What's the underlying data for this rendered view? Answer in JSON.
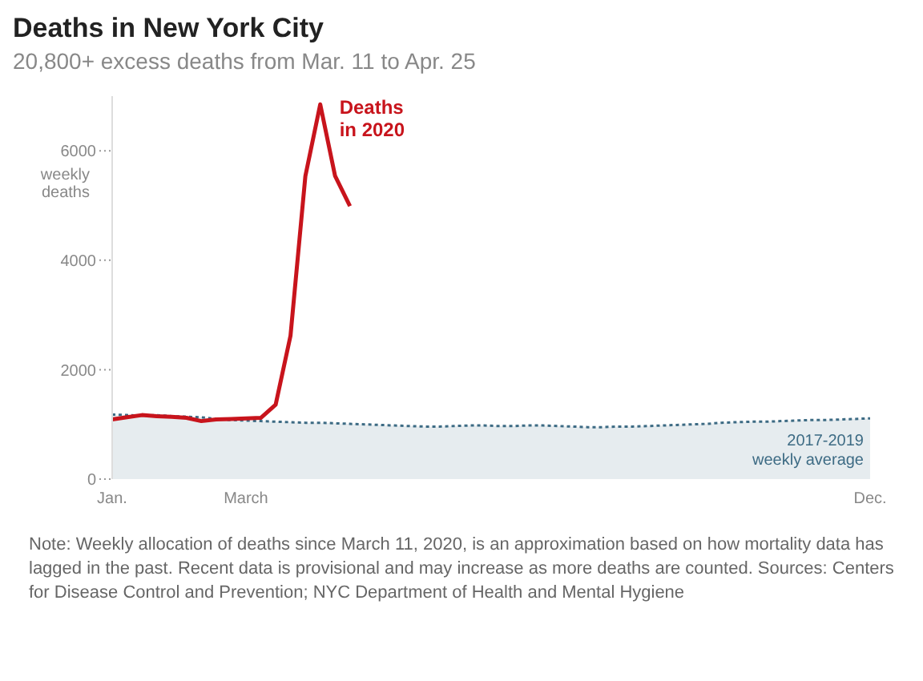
{
  "chart_data": {
    "type": "line",
    "title": "Deaths in New York City",
    "subtitle": "20,800+ excess deaths from Mar. 11 to Apr. 25",
    "ylabel": "weekly deaths",
    "categories": [
      "Jan.",
      null,
      null,
      null,
      null,
      null,
      null,
      null,
      null,
      "March",
      null,
      null,
      null,
      null,
      null,
      null,
      null,
      null,
      null,
      null,
      null,
      null,
      null,
      null,
      null,
      null,
      null,
      null,
      null,
      null,
      null,
      null,
      null,
      null,
      null,
      null,
      null,
      null,
      null,
      null,
      null,
      null,
      null,
      null,
      null,
      null,
      null,
      null,
      null,
      null,
      null,
      "Dec."
    ],
    "ylim": [
      0,
      7000
    ],
    "yticks": [
      0,
      2000,
      4000,
      6000
    ],
    "grid": false,
    "legend": false,
    "marker": "none",
    "series": [
      {
        "name": "2017-2019 weekly average",
        "type": "area",
        "color": "#3d6b84",
        "line_style": "dotted",
        "values": [
          1180,
          1170,
          1160,
          1170,
          1150,
          1140,
          1130,
          1100,
          1080,
          1070,
          1060,
          1050,
          1040,
          1030,
          1030,
          1020,
          1010,
          1000,
          990,
          980,
          970,
          960,
          960,
          970,
          980,
          980,
          970,
          970,
          980,
          980,
          970,
          960,
          950,
          950,
          960,
          960,
          970,
          980,
          990,
          1000,
          1010,
          1030,
          1040,
          1050,
          1050,
          1060,
          1070,
          1080,
          1080,
          1090,
          1100,
          1110
        ]
      },
      {
        "name": "Deaths in 2020",
        "color": "#c8141c",
        "line_style": "solid",
        "values": [
          1090,
          1130,
          1170,
          1150,
          1140,
          1120,
          1060,
          1090,
          1100,
          1110,
          1120,
          1360,
          2620,
          5540,
          6850,
          5540,
          4990,
          null,
          null,
          null,
          null,
          null,
          null,
          null,
          null,
          null,
          null,
          null,
          null,
          null,
          null,
          null,
          null,
          null,
          null,
          null,
          null,
          null,
          null,
          null,
          null,
          null,
          null,
          null,
          null,
          null,
          null,
          null,
          null,
          null,
          null,
          null
        ]
      }
    ],
    "annotations": [
      "Note: Weekly allocation of deaths since March 11, 2020, is an approximation based on how mortality data has lagged in the past. Recent data is provisional and may increase as more deaths are counted. Sources: Centers for Disease Control and Prevention; NYC Department of Health and Mental Hygiene"
    ]
  }
}
